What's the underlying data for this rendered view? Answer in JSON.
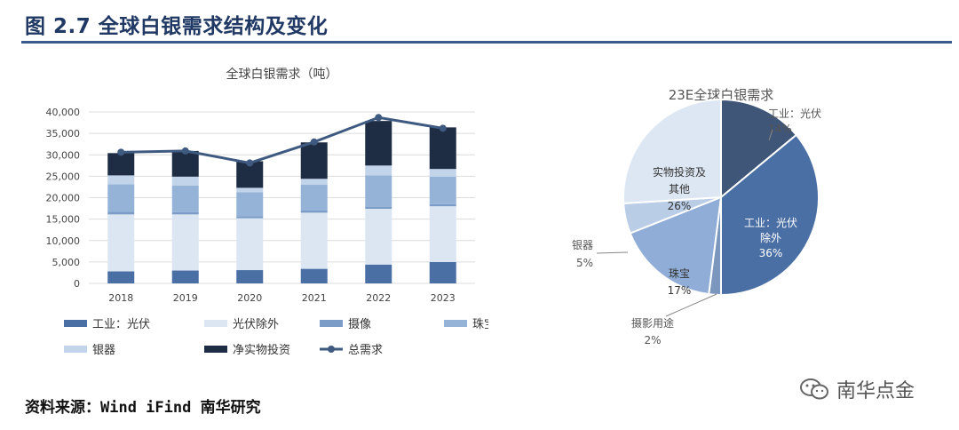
{
  "figure_title": "图 2.7 全球白银需求结构及变化",
  "source": "资料来源：Wind iFind 南华研究",
  "watermark": "南华点金",
  "chart_data": [
    {
      "type": "bar",
      "title": "全球白银需求（吨）",
      "stacked": true,
      "categories": [
        "2018",
        "2019",
        "2020",
        "2021",
        "2022",
        "2023"
      ],
      "ylim": [
        0,
        40000
      ],
      "yticks": [
        "0",
        "5,000",
        "10,000",
        "15,000",
        "20,000",
        "25,000",
        "30,000",
        "35,000",
        "40,000"
      ],
      "grid": true,
      "legend_position": "bottom",
      "series": [
        {
          "name": "工业：光伏",
          "color": "#4a6fa5",
          "values": [
            2800,
            3000,
            3100,
            3400,
            4400,
            5000
          ]
        },
        {
          "name": "光伏除外",
          "color": "#dce6f2",
          "values": [
            13300,
            13100,
            12100,
            13100,
            13000,
            13000
          ]
        },
        {
          "name": "摄像",
          "color": "#7b9cc7",
          "values": [
            600,
            500,
            500,
            500,
            500,
            500
          ]
        },
        {
          "name": "珠宝",
          "color": "#95b3d7",
          "values": [
            6400,
            6200,
            5600,
            6000,
            7300,
            6400
          ]
        },
        {
          "name": "银器",
          "color": "#c2d4ea",
          "values": [
            2100,
            2100,
            1000,
            1400,
            2300,
            1800
          ]
        },
        {
          "name": "净实物投资",
          "color": "#1f2d44",
          "values": [
            5200,
            6000,
            6200,
            8500,
            10400,
            9700
          ]
        }
      ],
      "line": {
        "name": "总需求",
        "color": "#3e5a80",
        "values": [
          30600,
          30900,
          28100,
          33000,
          38700,
          36200
        ]
      }
    },
    {
      "type": "pie",
      "title": "23E全球白银需求",
      "slices": [
        {
          "label": "工业：光伏",
          "value": 14,
          "pct": "14%",
          "color": "#3f5678"
        },
        {
          "label": "工业：光伏除外",
          "value": 36,
          "pct": "36%",
          "color": "#4a6fa5"
        },
        {
          "label": "摄影用途",
          "value": 2,
          "pct": "2%",
          "color": "#7b97bd"
        },
        {
          "label": "珠宝",
          "value": 17,
          "pct": "17%",
          "color": "#8fadd6"
        },
        {
          "label": "银器",
          "value": 5,
          "pct": "5%",
          "color": "#b9cde6"
        },
        {
          "label": "实物投资及其他",
          "value": 26,
          "pct": "26%",
          "color": "#dde7f3"
        }
      ],
      "label_lines": {
        "pv": [
          "工业：光伏",
          "14%"
        ],
        "ind": [
          "工业：光伏",
          "除外",
          "36%"
        ],
        "photo": [
          "摄影用途",
          "2%"
        ],
        "jewel": [
          "珠宝",
          "17%"
        ],
        "silverware": [
          "银器",
          "5%"
        ],
        "invest": [
          "实物投资及",
          "其他",
          "26%"
        ]
      }
    }
  ]
}
